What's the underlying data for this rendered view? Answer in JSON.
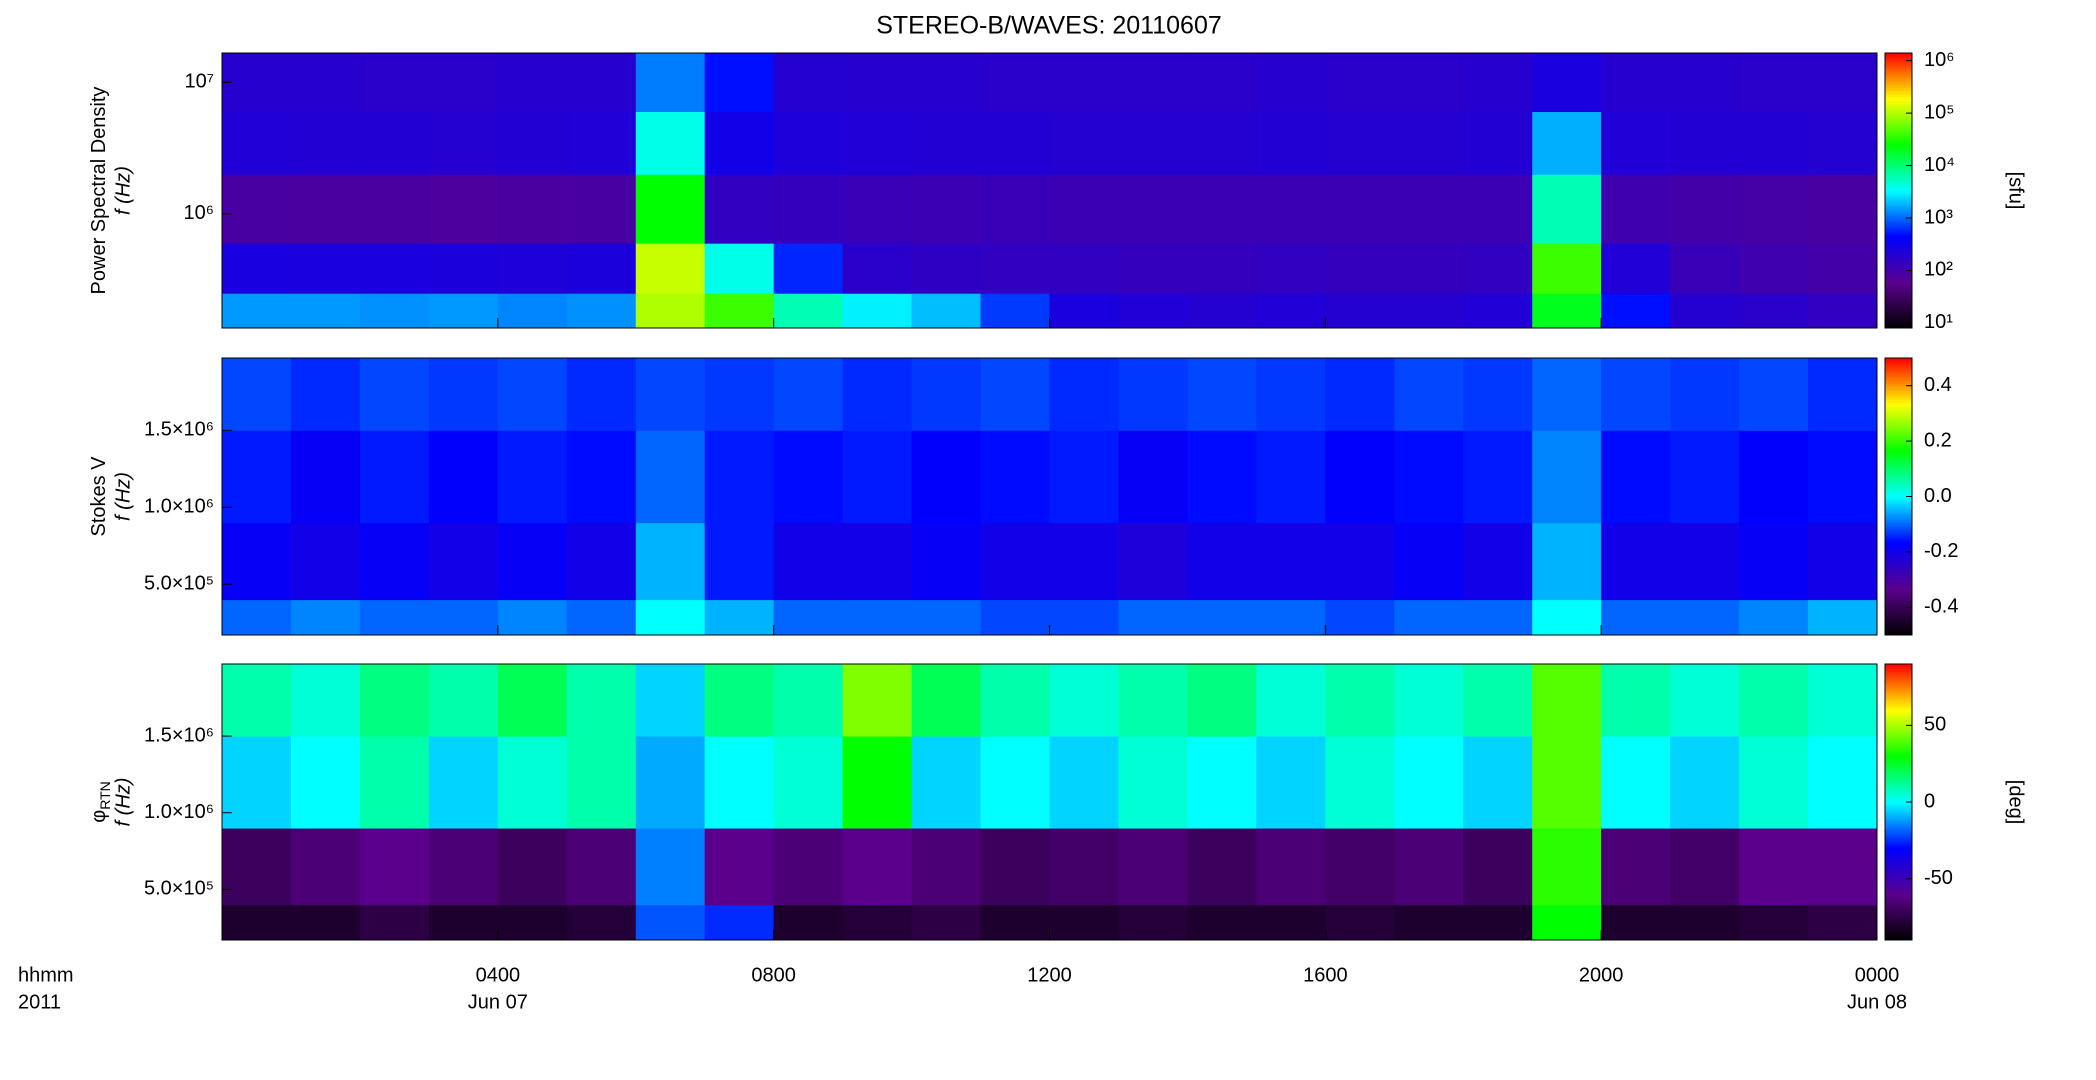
{
  "chart_data": {
    "type": "spectrogram",
    "title": "STEREO-B/WAVES: 20110607",
    "colormap": "rainbow",
    "xlim": [
      0,
      24
    ],
    "xbins": [
      0,
      1,
      2,
      3,
      4,
      5,
      6,
      7,
      8,
      9,
      10,
      11,
      12,
      13,
      14,
      15,
      16,
      17,
      18,
      19,
      20,
      21,
      22,
      23,
      24
    ],
    "xticks": [
      {
        "value": 4,
        "label": "0400"
      },
      {
        "value": 8,
        "label": "0800"
      },
      {
        "value": 12,
        "label": "1200"
      },
      {
        "value": 16,
        "label": "1600"
      },
      {
        "value": 20,
        "label": "2000"
      },
      {
        "value": 24,
        "label": "0000"
      }
    ],
    "xticks_date": [
      {
        "value": 4,
        "label": "Jun 07"
      },
      {
        "value": 24,
        "label": "Jun 08"
      }
    ],
    "xlabel": [
      "hhmm",
      "2011"
    ],
    "panels": [
      {
        "ylabel": [
          "Power Spectral Density",
          "f (Hz)"
        ],
        "ylog": true,
        "ylim": [
          136000,
          16700000
        ],
        "yticks": [
          {
            "value": 1000000,
            "label": "10⁶"
          },
          {
            "value": 10000000,
            "label": "10⁷"
          }
        ],
        "ybins": [
          136000,
          250000,
          600000,
          2000000,
          6000000,
          16700000
        ],
        "zlog": true,
        "zlim": [
          8,
          1400000
        ],
        "zlabel": "[sfu]",
        "zticks": [
          {
            "value": 10,
            "label": "10¹"
          },
          {
            "value": 100,
            "label": "10²"
          },
          {
            "value": 1000,
            "label": "10³"
          },
          {
            "value": 10000,
            "label": "10⁴"
          },
          {
            "value": 100000,
            "label": "10⁵"
          },
          {
            "value": 1000000,
            "label": "10⁶"
          }
        ],
        "z": [
          [
            1500,
            1500,
            1400,
            1500,
            1300,
            1400,
            100000,
            40000,
            6000,
            3000,
            2000,
            700,
            250,
            220,
            200,
            220,
            200,
            200,
            220,
            20000,
            500,
            200,
            180,
            150
          ],
          [
            260,
            250,
            250,
            240,
            230,
            240,
            120000,
            4000,
            600,
            180,
            160,
            150,
            150,
            140,
            140,
            150,
            140,
            140,
            150,
            40000,
            220,
            130,
            110,
            100
          ],
          [
            90,
            85,
            85,
            80,
            85,
            90,
            25000,
            150,
            140,
            130,
            120,
            130,
            120,
            120,
            120,
            120,
            120,
            120,
            120,
            6000,
            110,
            100,
            95,
            90
          ],
          [
            220,
            210,
            210,
            200,
            210,
            220,
            4000,
            300,
            230,
            220,
            210,
            210,
            200,
            200,
            200,
            210,
            200,
            200,
            210,
            1800,
            220,
            210,
            210,
            200
          ],
          [
            190,
            190,
            180,
            180,
            190,
            190,
            1200,
            500,
            200,
            190,
            190,
            180,
            180,
            180,
            180,
            190,
            180,
            180,
            190,
            250,
            190,
            190,
            180,
            180
          ]
        ]
      },
      {
        "ylabel": [
          "Stokes V",
          "f (Hz)"
        ],
        "ylog": false,
        "ylim": [
          170000,
          1970000
        ],
        "yticks": [
          {
            "value": 500000,
            "label": "5.0×10⁵"
          },
          {
            "value": 1000000,
            "label": "1.0×10⁶"
          },
          {
            "value": 1500000,
            "label": "1.5×10⁶"
          }
        ],
        "ybins": [
          170000,
          400000,
          900000,
          1500000,
          1970000
        ],
        "zlog": false,
        "zlim": [
          -0.5,
          0.5
        ],
        "zticks": [
          -0.4,
          -0.2,
          {
            "value": 0,
            "label": "0.0"
          },
          0.2,
          0.4
        ],
        "z": [
          [
            -0.1,
            -0.08,
            -0.1,
            -0.1,
            -0.08,
            -0.1,
            0.0,
            -0.05,
            -0.1,
            -0.1,
            -0.1,
            -0.12,
            -0.12,
            -0.1,
            -0.1,
            -0.1,
            -0.12,
            -0.1,
            -0.1,
            0.0,
            -0.1,
            -0.1,
            -0.08,
            -0.05
          ],
          [
            -0.18,
            -0.2,
            -0.18,
            -0.2,
            -0.18,
            -0.2,
            -0.05,
            -0.15,
            -0.2,
            -0.2,
            -0.18,
            -0.2,
            -0.2,
            -0.22,
            -0.2,
            -0.2,
            -0.2,
            -0.18,
            -0.2,
            -0.05,
            -0.2,
            -0.2,
            -0.18,
            -0.2
          ],
          [
            -0.15,
            -0.18,
            -0.15,
            -0.17,
            -0.15,
            -0.16,
            -0.1,
            -0.15,
            -0.16,
            -0.15,
            -0.17,
            -0.16,
            -0.15,
            -0.18,
            -0.16,
            -0.15,
            -0.17,
            -0.16,
            -0.15,
            -0.08,
            -0.16,
            -0.15,
            -0.17,
            -0.16
          ],
          [
            -0.12,
            -0.14,
            -0.12,
            -0.13,
            -0.12,
            -0.14,
            -0.12,
            -0.13,
            -0.12,
            -0.14,
            -0.13,
            -0.12,
            -0.14,
            -0.13,
            -0.12,
            -0.13,
            -0.14,
            -0.12,
            -0.13,
            -0.1,
            -0.12,
            -0.13,
            -0.12,
            -0.14
          ]
        ]
      },
      {
        "ylabel": [
          "φ",
          "f (Hz)"
        ],
        "ylabel_sub": "RTN",
        "ylog": false,
        "ylim": [
          170000,
          1970000
        ],
        "yticks": [
          {
            "value": 500000,
            "label": "5.0×10⁵"
          },
          {
            "value": 1000000,
            "label": "1.0×10⁶"
          },
          {
            "value": 1500000,
            "label": "1.5×10⁶"
          }
        ],
        "ybins": [
          170000,
          400000,
          900000,
          1500000,
          1970000
        ],
        "zlog": false,
        "zlim": [
          -90,
          90
        ],
        "zlabel": "[deg]",
        "zticks": [
          -50,
          0,
          50
        ],
        "z": [
          [
            -80,
            -80,
            -75,
            -80,
            -80,
            -78,
            -20,
            -25,
            -80,
            -78,
            -75,
            -80,
            -80,
            -78,
            -80,
            -80,
            -78,
            -80,
            -80,
            30,
            -80,
            -80,
            -78,
            -75
          ],
          [
            -70,
            -65,
            -60,
            -65,
            -70,
            -65,
            -15,
            -60,
            -65,
            -60,
            -65,
            -70,
            -68,
            -65,
            -70,
            -65,
            -68,
            -65,
            -70,
            35,
            -65,
            -68,
            -60,
            -60
          ],
          [
            -5,
            0,
            10,
            -5,
            5,
            10,
            -10,
            0,
            5,
            30,
            -5,
            0,
            -5,
            5,
            0,
            -5,
            5,
            0,
            -5,
            40,
            0,
            -5,
            5,
            0
          ],
          [
            10,
            5,
            15,
            10,
            20,
            10,
            -5,
            15,
            10,
            45,
            20,
            10,
            5,
            10,
            15,
            5,
            10,
            5,
            10,
            40,
            10,
            5,
            10,
            5
          ]
        ]
      }
    ]
  }
}
